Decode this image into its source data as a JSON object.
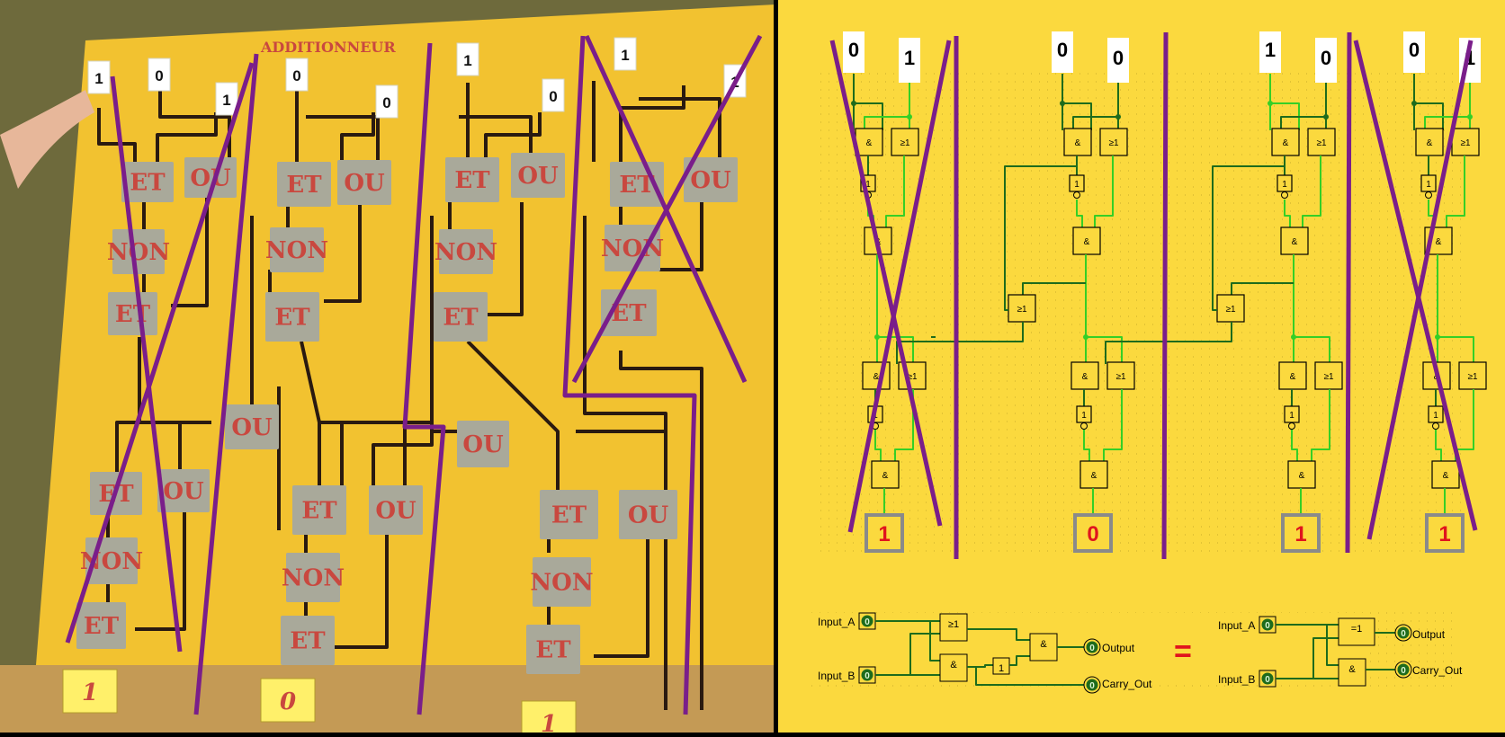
{
  "board": {
    "title": "ADDITIONNEUR",
    "input_cards": [
      "1",
      "0",
      "1",
      "0",
      "0",
      "1",
      "0",
      "1"
    ],
    "output_cards": [
      "1",
      "0",
      "1"
    ],
    "gate_labels": {
      "and": "ET",
      "or": "OU",
      "not": "NON"
    }
  },
  "circuit": {
    "columns": [
      {
        "inputs": [
          "0",
          "1"
        ],
        "output": "1",
        "crossed": true
      },
      {
        "inputs": [
          "0",
          "0"
        ],
        "output": "0",
        "crossed": false
      },
      {
        "inputs": [
          "1",
          "0"
        ],
        "output": "1",
        "crossed": false
      },
      {
        "inputs": [
          "0",
          "1"
        ],
        "output": "1",
        "crossed": true
      }
    ],
    "gate_symbols": {
      "and": "&",
      "or": "≥1",
      "not": "1",
      "xor": "=1"
    }
  },
  "half_adder": {
    "left": {
      "input_a": "Input_A",
      "input_b": "Input_B",
      "output": "Output",
      "carry_out": "Carry_Out",
      "pin_value": "0"
    },
    "equals": "=",
    "right": {
      "input_a": "Input_A",
      "input_b": "Input_B",
      "output": "Output",
      "carry_out": "Carry_Out",
      "pin_value": "0"
    }
  },
  "colors": {
    "board": "#f2c230",
    "panel": "#fbd93e",
    "gate": "#a9a99a",
    "gate_text": "#c9483f",
    "wire_dark": "#2a1a10",
    "wire_green": "#1e6b1c",
    "wire_light": "#35cf26",
    "strike": "#7a1e8a",
    "output_red": "#e0141d"
  }
}
